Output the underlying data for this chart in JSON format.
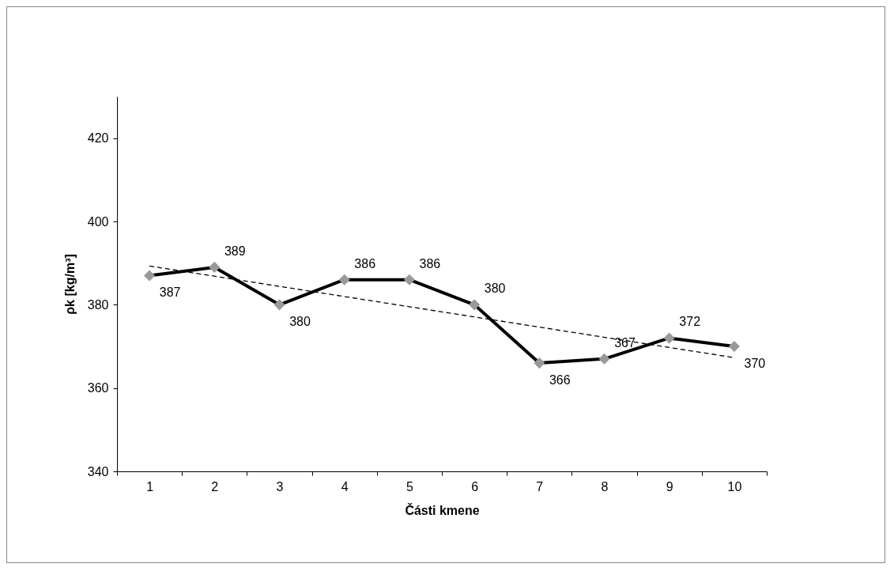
{
  "chart_data": {
    "type": "line",
    "xlabel": "Části kmene",
    "ylabel": "ρk [kg/m³]",
    "categories": [
      "1",
      "2",
      "3",
      "4",
      "5",
      "6",
      "7",
      "8",
      "9",
      "10"
    ],
    "series": [
      {
        "color": "#000000",
        "colors": [
          "#999999",
          "#999999",
          "#999999",
          "#999999",
          "#999999",
          "#999999",
          "#999999",
          "#999999",
          "#999999",
          "#999999"
        ],
        "marker": "diamond",
        "line_style": "solid",
        "values": [
          387,
          389,
          380,
          386,
          386,
          380,
          366,
          367,
          372,
          370
        ],
        "value_labels": [
          "387",
          "389",
          "380",
          "386",
          "386",
          "380",
          "366",
          "367",
          "372",
          "370"
        ]
      },
      {
        "type": "line",
        "color": "#000000",
        "marker": "none",
        "line_style": "dashed",
        "x": [
          "1",
          "10"
        ],
        "values": [
          389.3,
          367.3
        ]
      }
    ],
    "ylim": [
      340,
      430
    ],
    "yticks": [
      340,
      360,
      380,
      400,
      420
    ]
  }
}
